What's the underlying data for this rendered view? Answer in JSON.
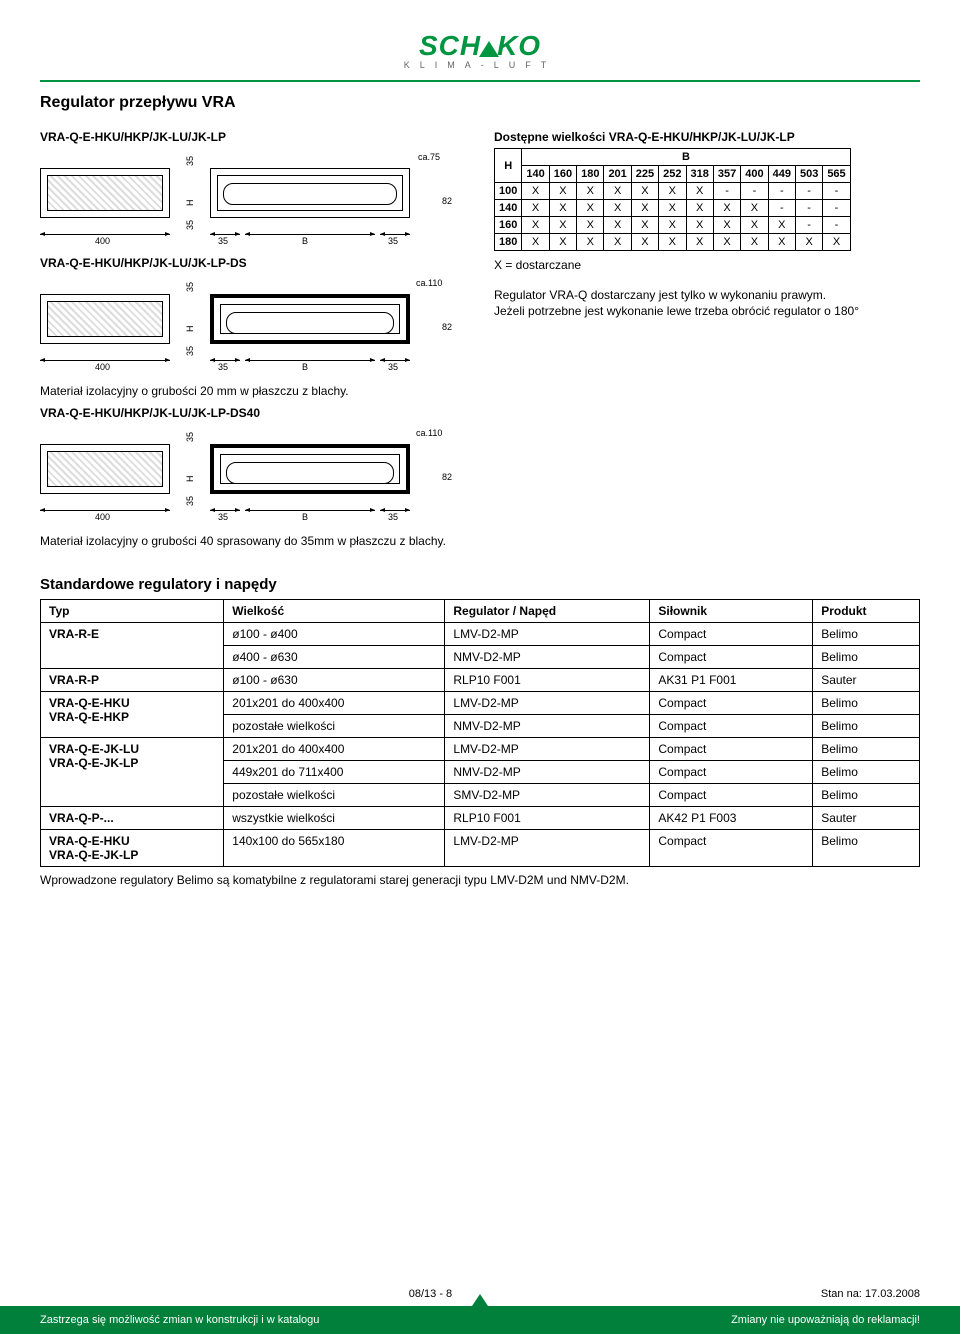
{
  "logo": {
    "name": "SCHAKO",
    "sub": "KLIMA-LUFT"
  },
  "title": "Regulator przepływu VRA",
  "variants": {
    "v1_title": "VRA-Q-E-HKU/HKP/JK-LU/JK-LP",
    "v1_dims": {
      "base_len": "400",
      "gap_l": "35",
      "b_lbl": "B",
      "gap_r": "35",
      "side35_1": "35",
      "side35_2": "35",
      "ca": "ca.75",
      "h_lbl": "H",
      "ht": "82"
    },
    "v2_title": "VRA-Q-E-HKU/HKP/JK-LU/JK-LP-DS",
    "v2_dims": {
      "base_len": "400",
      "gap_l": "35",
      "b_lbl": "B",
      "gap_r": "35",
      "side35_1": "35",
      "side35_2": "35",
      "ca": "ca.110",
      "h_lbl": "H",
      "ht": "82"
    },
    "mat20": "Materiał izolacyjny o grubości 20 mm w płaszczu z blachy.",
    "v3_title": "VRA-Q-E-HKU/HKP/JK-LU/JK-LP-DS40",
    "v3_dims": {
      "base_len": "400",
      "gap_l": "35",
      "b_lbl": "B",
      "gap_r": "35",
      "side35_1": "35",
      "side35_2": "35",
      "ca": "ca.110",
      "h_lbl": "H",
      "ht": "82"
    },
    "mat40": "Materiał izolacyjny o grubości 40 sprasowany do 35mm w płaszczu z blachy."
  },
  "avail": {
    "heading": "Dostępne wielkości VRA-Q-E-HKU/HKP/JK-LU/JK-LP",
    "h_label": "H",
    "b_label": "B",
    "cols": [
      "140",
      "160",
      "180",
      "201",
      "225",
      "252",
      "318",
      "357",
      "400",
      "449",
      "503",
      "565"
    ],
    "rows": [
      {
        "h": "100",
        "cells": [
          "X",
          "X",
          "X",
          "X",
          "X",
          "X",
          "X",
          "-",
          "-",
          "-",
          "-",
          "-"
        ]
      },
      {
        "h": "140",
        "cells": [
          "X",
          "X",
          "X",
          "X",
          "X",
          "X",
          "X",
          "X",
          "X",
          "-",
          "-",
          "-"
        ]
      },
      {
        "h": "160",
        "cells": [
          "X",
          "X",
          "X",
          "X",
          "X",
          "X",
          "X",
          "X",
          "X",
          "X",
          "-",
          "-"
        ]
      },
      {
        "h": "180",
        "cells": [
          "X",
          "X",
          "X",
          "X",
          "X",
          "X",
          "X",
          "X",
          "X",
          "X",
          "X",
          "X"
        ]
      }
    ],
    "x_note": "X = dostarczane",
    "note1": "Regulator VRA-Q dostarczany jest tylko w wykonaniu prawym.",
    "note2": "Jeżeli potrzebne jest wykonanie lewe trzeba obrócić regulator o 180°"
  },
  "stdreg": {
    "heading": "Standardowe regulatory i napędy",
    "columns": [
      "Typ",
      "Wielkość",
      "Regulator / Napęd",
      "Siłownik",
      "Produkt"
    ],
    "rows": [
      {
        "typ": "VRA-R-E",
        "typ_rowspan": 2,
        "size": "ø100 - ø400",
        "reg": "LMV-D2-MP",
        "act": "Compact",
        "prod": "Belimo"
      },
      {
        "size": "ø400 - ø630",
        "reg": "NMV-D2-MP",
        "act": "Compact",
        "prod": "Belimo"
      },
      {
        "typ": "VRA-R-P",
        "size": "ø100 - ø630",
        "reg": "RLP10 F001",
        "act": "AK31 P1 F001",
        "prod": "Sauter"
      },
      {
        "typ": "VRA-Q-E-HKU\nVRA-Q-E-HKP",
        "typ_rowspan": 2,
        "size": "201x201 do 400x400",
        "reg": "LMV-D2-MP",
        "act": "Compact",
        "prod": "Belimo"
      },
      {
        "size": "pozostałe wielkości",
        "reg": "NMV-D2-MP",
        "act": "Compact",
        "prod": "Belimo"
      },
      {
        "typ": "VRA-Q-E-JK-LU\nVRA-Q-E-JK-LP",
        "typ_rowspan": 3,
        "size": "201x201 do 400x400",
        "reg": "LMV-D2-MP",
        "act": "Compact",
        "prod": "Belimo"
      },
      {
        "size": "449x201 do 711x400",
        "reg": "NMV-D2-MP",
        "act": "Compact",
        "prod": "Belimo"
      },
      {
        "size": "pozostałe wielkości",
        "reg": "SMV-D2-MP",
        "act": "Compact",
        "prod": "Belimo"
      },
      {
        "typ": "VRA-Q-P-...",
        "size": "wszystkie wielkości",
        "reg": "RLP10 F001",
        "act": "AK42 P1 F003",
        "prod": "Sauter"
      },
      {
        "typ": "VRA-Q-E-HKU\nVRA-Q-E-JK-LP",
        "size": "140x100 do 565x180",
        "reg": "LMV-D2-MP",
        "act": "Compact",
        "prod": "Belimo"
      }
    ],
    "footnote": "Wprowadzone regulatory Belimo są komatybilne z regulatorami starej generacji typu LMV-D2M und NMV-D2M."
  },
  "footer": {
    "page": "08/13 - 8",
    "date_label": "Stan na: ",
    "date": "17.03.2008",
    "left": "Zastrzega się możliwość zmian w konstrukcji i w katalogu",
    "right": "Zmiany nie upoważniają do reklamacji!"
  }
}
